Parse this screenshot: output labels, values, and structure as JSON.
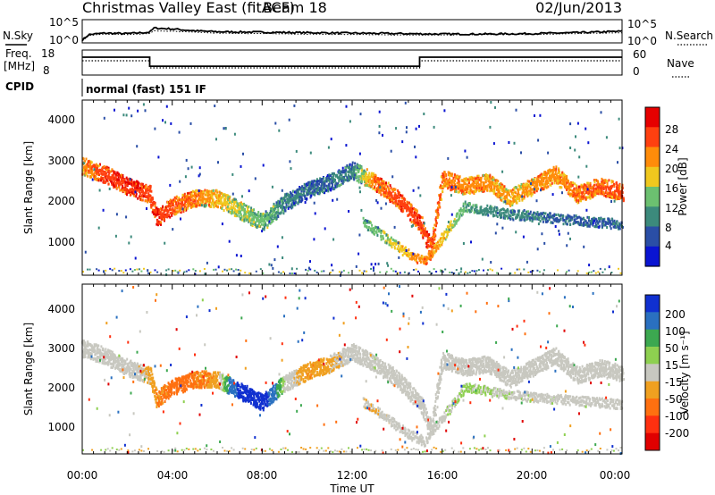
{
  "header": {
    "station": "Christmas Valley East (fitACF)",
    "beam": "Beam 18",
    "date": "02/Jun/2013"
  },
  "noise_panel": {
    "left_label": "N.Sky",
    "right_label": "N.Search",
    "ticks": [
      "10^5",
      "10^0"
    ]
  },
  "freq_panel": {
    "left_label_1": "Freq.",
    "left_label_2": "[MHz]",
    "left_ticks": [
      "18",
      "8"
    ],
    "right_label": "Nave",
    "right_ticks": [
      "60",
      "0"
    ]
  },
  "cpid": {
    "label": "CPID",
    "value": "normal (fast) 151 IF"
  },
  "axes": {
    "xlabel": "Time UT",
    "ylabel": "Slant Range [km]",
    "x_ticks": [
      "00:00",
      "04:00",
      "08:00",
      "12:00",
      "16:00",
      "20:00",
      "00:00"
    ],
    "y_ticks": [
      "1000",
      "2000",
      "3000",
      "4000"
    ]
  },
  "power_scale": {
    "label": "Power [dB]",
    "ticks": [
      "4",
      "8",
      "12",
      "16",
      "20",
      "24",
      "28"
    ],
    "colors": [
      "#0a14d2",
      "#2a4ea6",
      "#3c8a7c",
      "#6cc070",
      "#f0c81e",
      "#ff8c0a",
      "#ff4010",
      "#e60000"
    ]
  },
  "velocity_scale": {
    "label": "Velocity [m s⁻¹]",
    "ticks": [
      "200",
      "100",
      "50",
      "15",
      "-15",
      "-50",
      "-100",
      "-200"
    ],
    "colors": [
      "#1030d0",
      "#2a70c0",
      "#3ca850",
      "#8ed050",
      "#c8c8c0",
      "#f0a020",
      "#ff7010",
      "#ff3010",
      "#e00000"
    ]
  },
  "chart_data": {
    "type": "heatmap",
    "x_range_hours": [
      0,
      24
    ],
    "y_range_km": [
      180,
      4500
    ],
    "time_axis": "hours UT",
    "noise": {
      "x": [
        0,
        0.3,
        1,
        2,
        3,
        3.2,
        4,
        5,
        6,
        8,
        10,
        12,
        14,
        16,
        18,
        20,
        22,
        24
      ],
      "search_log10": [
        0.6,
        1.8,
        2.1,
        2.0,
        2.3,
        3.2,
        3.0,
        2.6,
        2.4,
        2.3,
        2.2,
        2.1,
        2.0,
        1.9,
        1.9,
        2.0,
        2.2,
        2.5
      ],
      "sky_log10": [
        0.4,
        1.6,
        1.9,
        1.8,
        2.0,
        2.6,
        2.5,
        2.3,
        2.1,
        2.0,
        1.9,
        1.8,
        1.7,
        1.7,
        1.8,
        1.8,
        2.0,
        2.2
      ]
    },
    "frequency": {
      "x": [
        0,
        3,
        3,
        15,
        15,
        24
      ],
      "mhz": [
        15.5,
        15.5,
        11.3,
        11.3,
        15.5,
        15.5
      ]
    },
    "nave": {
      "x": [
        0,
        3,
        3,
        15,
        15,
        24
      ],
      "count": [
        35,
        35,
        15,
        15,
        35,
        35
      ]
    },
    "bands": [
      {
        "x": [
          0,
          1,
          2,
          3,
          3.3,
          4,
          5,
          6,
          7,
          8,
          9,
          10,
          11,
          12,
          13,
          14,
          15,
          15.5,
          16,
          17,
          18,
          19,
          20,
          21,
          22,
          23,
          24
        ],
        "range_km": [
          2900,
          2700,
          2400,
          2200,
          1600,
          1900,
          2100,
          2100,
          1800,
          1500,
          2000,
          2300,
          2500,
          2800,
          2500,
          2100,
          1500,
          800,
          2600,
          2400,
          2500,
          2100,
          2400,
          2700,
          2200,
          2400,
          2250
        ],
        "power_db": [
          22,
          27,
          28,
          26,
          29,
          25,
          24,
          20,
          16,
          14,
          10,
          8,
          8,
          10,
          24,
          26,
          27,
          26,
          24,
          23,
          22,
          20,
          22,
          23,
          24,
          25,
          26
        ],
        "velocity": [
          0,
          0,
          0,
          -20,
          -30,
          -40,
          -35,
          -25,
          180,
          200,
          0,
          -30,
          -20,
          0,
          10,
          0,
          0,
          -10,
          0,
          0,
          0,
          0,
          0,
          0,
          0,
          0,
          0
        ]
      },
      {
        "x": [
          12.5,
          13.5,
          14.5,
          15.2,
          17,
          19,
          21,
          23,
          24
        ],
        "range_km": [
          1500,
          1100,
          700,
          500,
          1900,
          1700,
          1600,
          1500,
          1450
        ],
        "power_db": [
          12,
          16,
          20,
          24,
          12,
          10,
          8,
          8,
          8
        ],
        "velocity": [
          -15,
          -10,
          0,
          0,
          20,
          10,
          10,
          0,
          0
        ]
      }
    ]
  }
}
